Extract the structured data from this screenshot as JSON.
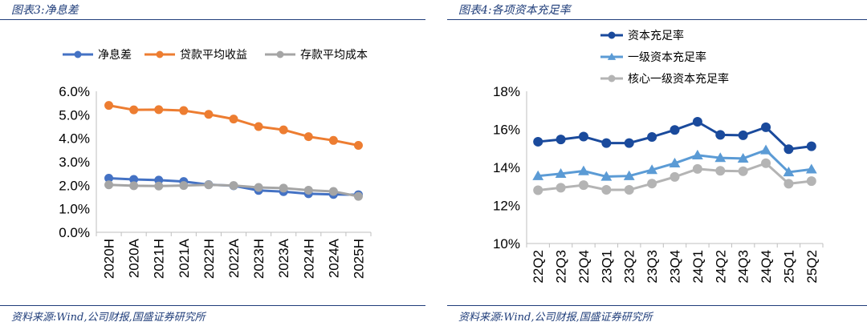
{
  "left_panel": {
    "title": "图表3:净息差",
    "source": "资料来源:Wind,公司财报,国盛证券研究所"
  },
  "right_panel": {
    "title": "图表4:各项资本充足率",
    "source": "资料来源:Wind,公司财报,国盛证券研究所"
  },
  "chart_data": [
    {
      "type": "line",
      "title": "净息差",
      "categories": [
        "2020H",
        "2020A",
        "2021H",
        "2021A",
        "2022H",
        "2022A",
        "2023H",
        "2023A",
        "2024H",
        "2024A",
        "2025H"
      ],
      "yticks": [
        "0.0%",
        "1.0%",
        "2.0%",
        "3.0%",
        "4.0%",
        "5.0%",
        "6.0%"
      ],
      "ylim": [
        0,
        6
      ],
      "legend_position": "top",
      "series": [
        {
          "name": "净息差",
          "color": "#4472c4",
          "marker": "circle",
          "values": [
            2.3,
            2.25,
            2.22,
            2.16,
            2.03,
            1.98,
            1.78,
            1.73,
            1.64,
            1.61,
            1.6
          ]
        },
        {
          "name": "贷款平均收益",
          "color": "#ed7d31",
          "marker": "circle",
          "values": [
            5.4,
            5.21,
            5.22,
            5.18,
            5.02,
            4.82,
            4.5,
            4.36,
            4.07,
            3.91,
            3.7
          ]
        },
        {
          "name": "存款平均成本",
          "color": "#a5a5a5",
          "marker": "circle",
          "values": [
            2.02,
            1.98,
            1.97,
            1.99,
            2.02,
            1.99,
            1.91,
            1.88,
            1.79,
            1.74,
            1.53
          ]
        }
      ]
    },
    {
      "type": "line",
      "title": "各项资本充足率",
      "categories": [
        "22Q2",
        "22Q3",
        "22Q4",
        "23Q1",
        "23Q2",
        "23Q3",
        "23Q4",
        "24Q1",
        "24Q2",
        "24Q3",
        "24Q4",
        "25Q1",
        "25Q2"
      ],
      "yticks": [
        "10%",
        "12%",
        "14%",
        "16%",
        "18%"
      ],
      "ylim": [
        10,
        18
      ],
      "legend_position": "top-left",
      "series": [
        {
          "name": "资本充足率",
          "color": "#1a4a9c",
          "marker": "circle",
          "values": [
            15.35,
            15.47,
            15.62,
            15.28,
            15.28,
            15.6,
            15.97,
            16.4,
            15.71,
            15.69,
            16.11,
            14.96,
            15.11
          ]
        },
        {
          "name": "一级资本充足率",
          "color": "#5b9bd5",
          "marker": "triangle",
          "values": [
            13.55,
            13.67,
            13.81,
            13.52,
            13.55,
            13.87,
            14.22,
            14.64,
            14.5,
            14.47,
            14.91,
            13.75,
            13.9
          ]
        },
        {
          "name": "核心一级资本充足率",
          "color": "#b4b4b4",
          "marker": "circle",
          "values": [
            12.8,
            12.93,
            13.07,
            12.82,
            12.82,
            13.15,
            13.5,
            13.92,
            13.82,
            13.8,
            14.22,
            13.14,
            13.28
          ]
        }
      ]
    }
  ]
}
